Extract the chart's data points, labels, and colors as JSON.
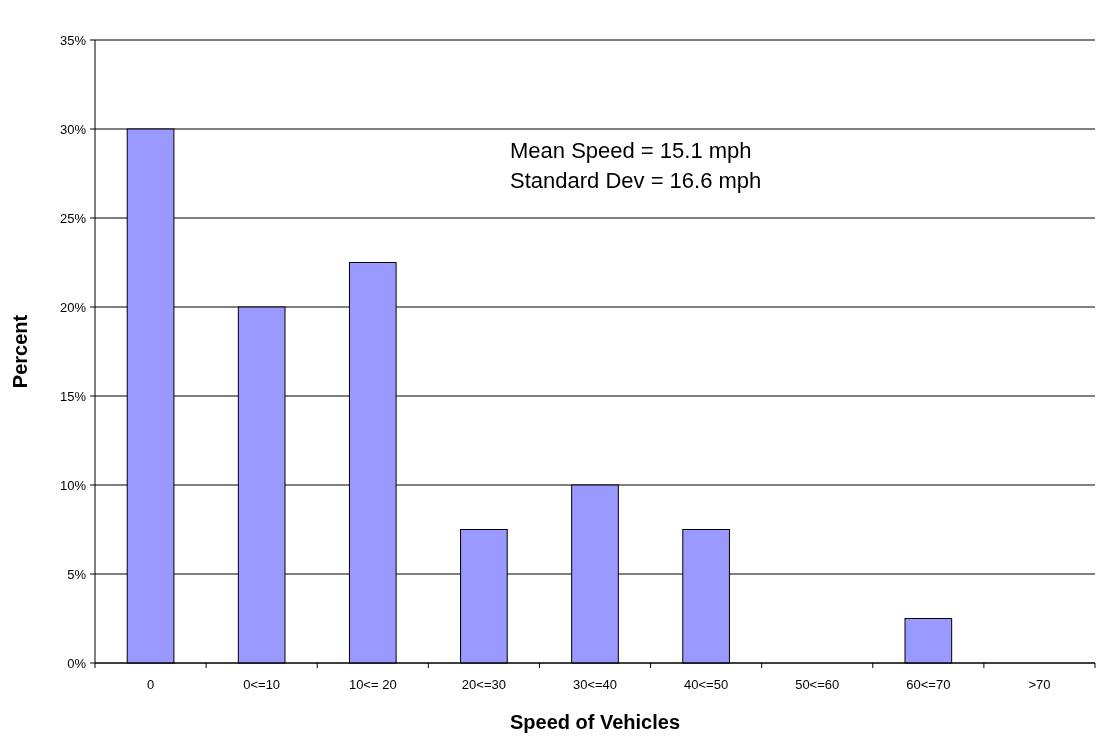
{
  "chart_data": {
    "type": "bar",
    "xlabel": "Speed of Vehicles",
    "ylabel": "Percent",
    "categories": [
      "0",
      "0<=10",
      "10<= 20",
      "20<=30",
      "30<=40",
      "40<=50",
      "50<=60",
      "60<=70",
      ">70"
    ],
    "values": [
      30,
      20,
      22.5,
      7.5,
      10,
      7.5,
      0,
      2.5,
      0
    ],
    "color": "#9999ff",
    "ylim": [
      0,
      35
    ],
    "yticks": [
      {
        "value": 0,
        "label": "0%"
      },
      {
        "value": 5,
        "label": "5%"
      },
      {
        "value": 10,
        "label": "10%"
      },
      {
        "value": 15,
        "label": "15%"
      },
      {
        "value": 20,
        "label": "20%"
      },
      {
        "value": 25,
        "label": "25%"
      },
      {
        "value": 30,
        "label": "30%"
      },
      {
        "value": 35,
        "label": "35%"
      }
    ],
    "grid": "y",
    "annotations": [
      "Mean Speed = 15.1 mph",
      "Standard Dev = 16.6 mph"
    ]
  }
}
